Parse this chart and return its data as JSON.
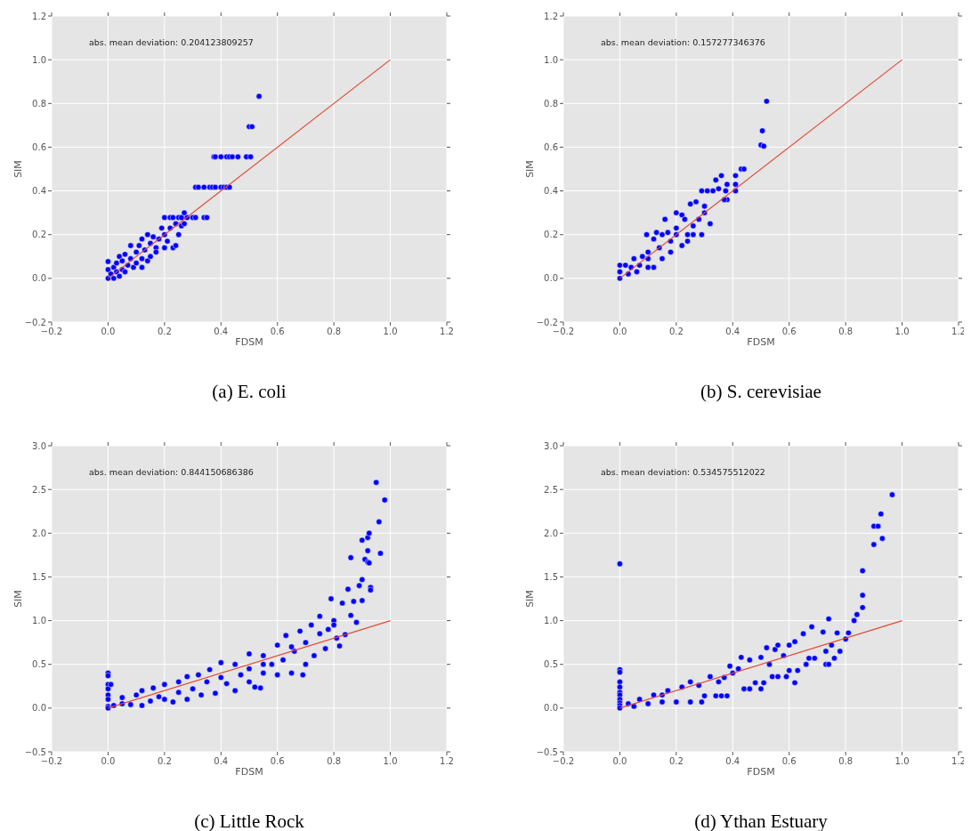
{
  "chart_data": [
    {
      "type": "scatter",
      "title": "(a) E. coli",
      "xlabel": "FDSM",
      "ylabel": "SIM",
      "annotations": [
        "abs. mean deviation: 0.204123809257"
      ],
      "grid": true,
      "xlim": [
        -0.2,
        1.2
      ],
      "ylim": [
        -0.2,
        1.2
      ],
      "xticks": [
        {
          "value": -0.2,
          "label": "−0.2"
        },
        {
          "value": 0,
          "label": "0.0"
        },
        0.2,
        0.4,
        0.6,
        0.8,
        {
          "value": 1,
          "label": "1.0"
        },
        1.2
      ],
      "yticks": [
        {
          "value": -0.2,
          "label": "−0.2"
        },
        {
          "value": 0,
          "label": "0.0"
        },
        0.2,
        0.4,
        0.6,
        0.8,
        {
          "value": 1,
          "label": "1.0"
        },
        1.2
      ],
      "series": [
        {
          "marker": "circle",
          "color": "#0000ff",
          "x": [
            0,
            0,
            0,
            0.01,
            0.02,
            0.02,
            0.03,
            0.03,
            0.04,
            0.04,
            0.05,
            0.05,
            0.06,
            0.06,
            0.07,
            0.08,
            0.08,
            0.09,
            0.1,
            0.1,
            0.11,
            0.12,
            0.12,
            0.12,
            0.13,
            0.14,
            0.14,
            0.15,
            0.15,
            0.16,
            0.17,
            0.17,
            0.18,
            0.19,
            0.2,
            0.2,
            0.21,
            0.22,
            0.23,
            0.24,
            0.24,
            0.25,
            0.26,
            0.27,
            0.27,
            0.2,
            0.22,
            0.23,
            0.25,
            0.26,
            0.28,
            0.3,
            0.31,
            0.34,
            0.35,
            0.31,
            0.32,
            0.34,
            0.36,
            0.37,
            0.38,
            0.4,
            0.41,
            0.42,
            0.43,
            0.375,
            0.38,
            0.4,
            0.42,
            0.43,
            0.44,
            0.46,
            0.49,
            0.505,
            0.5,
            0.51,
            0.535
          ],
          "values": [
            0,
            0.077,
            0.04,
            0.02,
            0.05,
            0,
            0.03,
            0.07,
            0.1,
            0.01,
            0.04,
            0.08,
            0.11,
            0.03,
            0.06,
            0.15,
            0.09,
            0.05,
            0.12,
            0.07,
            0.15,
            0.09,
            0.18,
            0.05,
            0.13,
            0.2,
            0.08,
            0.16,
            0.1,
            0.19,
            0.14,
            0.12,
            0.18,
            0.23,
            0.14,
            0.2,
            0.17,
            0.23,
            0.14,
            0.25,
            0.15,
            0.2,
            0.24,
            0.3,
            0.25,
            0.278,
            0.278,
            0.278,
            0.278,
            0.278,
            0.278,
            0.278,
            0.278,
            0.278,
            0.278,
            0.417,
            0.417,
            0.417,
            0.417,
            0.417,
            0.417,
            0.417,
            0.417,
            0.417,
            0.417,
            0.556,
            0.556,
            0.556,
            0.556,
            0.556,
            0.556,
            0.556,
            0.556,
            0.556,
            0.694,
            0.694,
            0.833
          ]
        },
        {
          "type": "line",
          "color": "#e24a33",
          "x": [
            0,
            1
          ],
          "values": [
            0,
            1
          ]
        }
      ]
    },
    {
      "type": "scatter",
      "title": "(b) S. cerevisiae",
      "xlabel": "FDSM",
      "ylabel": "SIM",
      "annotations": [
        "abs. mean deviation: 0.157277346376"
      ],
      "grid": true,
      "xlim": [
        -0.2,
        1.2
      ],
      "ylim": [
        -0.2,
        1.2
      ],
      "xticks": [
        {
          "value": -0.2,
          "label": "−0.2"
        },
        {
          "value": 0,
          "label": "0.0"
        },
        0.2,
        0.4,
        0.6,
        0.8,
        {
          "value": 1,
          "label": "1.0"
        },
        1.2
      ],
      "yticks": [
        {
          "value": -0.2,
          "label": "−0.2"
        },
        {
          "value": 0,
          "label": "0.0"
        },
        0.2,
        0.4,
        0.6,
        0.8,
        {
          "value": 1,
          "label": "1.0"
        },
        1.2
      ],
      "series": [
        {
          "marker": "circle",
          "color": "#0000ff",
          "x": [
            0.5,
            0.51,
            0.505,
            0.52,
            0.43,
            0.44,
            0.34,
            0.36,
            0.41,
            0.38,
            0.41,
            0.41,
            0.375,
            0.38,
            0.37,
            0.35,
            0.33,
            0.31,
            0.29,
            0.32,
            0.29,
            0.25,
            0.27,
            0.3,
            0.2,
            0.22,
            0.16,
            0.095,
            0.2,
            0.24,
            0.12,
            0.13,
            0.18,
            0.14,
            0.1,
            0.08,
            0.07,
            0.05,
            0.04,
            0.02,
            0,
            0,
            0,
            0.03,
            0.06,
            0.1,
            0.12,
            0.15,
            0.18,
            0.22,
            0.24,
            0.26,
            0.28,
            0.3,
            0.23,
            0.15,
            0.17,
            0.2,
            0.26,
            0.1
          ],
          "values": [
            0.61,
            0.605,
            0.675,
            0.81,
            0.5,
            0.5,
            0.45,
            0.47,
            0.47,
            0.43,
            0.43,
            0.4,
            0.4,
            0.36,
            0.36,
            0.41,
            0.4,
            0.4,
            0.4,
            0.25,
            0.2,
            0.34,
            0.35,
            0.33,
            0.3,
            0.29,
            0.27,
            0.2,
            0.2,
            0.2,
            0.18,
            0.21,
            0.17,
            0.14,
            0.12,
            0.1,
            0.06,
            0.09,
            0.05,
            0.06,
            0.06,
            0.03,
            0,
            0.02,
            0.03,
            0.05,
            0.05,
            0.09,
            0.12,
            0.15,
            0.17,
            0.24,
            0.27,
            0.3,
            0.27,
            0.2,
            0.21,
            0.23,
            0.2,
            0.09
          ]
        },
        {
          "type": "line",
          "color": "#e24a33",
          "x": [
            0,
            1
          ],
          "values": [
            0,
            1
          ]
        }
      ]
    },
    {
      "type": "scatter",
      "title": "(c) Little Rock",
      "xlabel": "FDSM",
      "ylabel": "SIM",
      "annotations": [
        "abs. mean deviation: 0.844150686386"
      ],
      "grid": true,
      "xlim": [
        -0.2,
        1.2
      ],
      "ylim": [
        -0.5,
        3.0
      ],
      "xticks": [
        {
          "value": -0.2,
          "label": "−0.2"
        },
        {
          "value": 0,
          "label": "0.0"
        },
        0.2,
        0.4,
        0.6,
        0.8,
        {
          "value": 1,
          "label": "1.0"
        },
        1.2
      ],
      "yticks": [
        {
          "value": -0.5,
          "label": "−0.5"
        },
        {
          "value": 0,
          "label": "0.0"
        },
        0.5,
        {
          "value": 1,
          "label": "1.0"
        },
        1.5,
        {
          "value": 2,
          "label": "2.0"
        },
        2.5,
        {
          "value": 3,
          "label": "3.0"
        }
      ],
      "series": [
        {
          "marker": "circle",
          "color": "#0000ff",
          "x": [
            0,
            0,
            0,
            0,
            0,
            0,
            0,
            0.01,
            0,
            0.02,
            0.05,
            0.05,
            0.08,
            0.1,
            0.12,
            0.12,
            0.15,
            0.16,
            0.18,
            0.2,
            0.2,
            0.23,
            0.25,
            0.25,
            0.28,
            0.28,
            0.3,
            0.32,
            0.33,
            0.35,
            0.36,
            0.38,
            0.4,
            0.4,
            0.42,
            0.45,
            0.45,
            0.47,
            0.5,
            0.5,
            0.5,
            0.52,
            0.54,
            0.55,
            0.55,
            0.58,
            0.6,
            0.6,
            0.62,
            0.63,
            0.65,
            0.66,
            0.68,
            0.69,
            0.7,
            0.7,
            0.72,
            0.73,
            0.75,
            0.75,
            0.77,
            0.78,
            0.79,
            0.8,
            0.81,
            0.82,
            0.83,
            0.84,
            0.85,
            0.86,
            0.86,
            0.87,
            0.88,
            0.89,
            0.9,
            0.9,
            0.9,
            0.91,
            0.92,
            0.92,
            0.92,
            0.925,
            0.925,
            0.93,
            0.93,
            0.95,
            0.96,
            0.965,
            0.98,
            0.8,
            0.65,
            0.55
          ],
          "values": [
            0.4,
            0.37,
            0.27,
            0.22,
            0.15,
            0.1,
            0.02,
            0.27,
            0,
            0.03,
            0.05,
            0.12,
            0.04,
            0.15,
            0.03,
            0.2,
            0.08,
            0.23,
            0.13,
            0.27,
            0.1,
            0.07,
            0.3,
            0.18,
            0.36,
            0.1,
            0.22,
            0.38,
            0.15,
            0.3,
            0.44,
            0.17,
            0.52,
            0.35,
            0.28,
            0.2,
            0.5,
            0.38,
            0.62,
            0.45,
            0.3,
            0.24,
            0.23,
            0.6,
            0.4,
            0.5,
            0.38,
            0.72,
            0.55,
            0.83,
            0.4,
            0.65,
            0.88,
            0.38,
            0.5,
            0.75,
            0.95,
            0.6,
            1.05,
            0.85,
            0.68,
            0.9,
            1.25,
            1.0,
            0.8,
            0.71,
            1.2,
            0.84,
            1.36,
            1.06,
            1.72,
            1.22,
            0.98,
            1.4,
            1.47,
            1.92,
            1.23,
            1.7,
            1.95,
            1.8,
            1.67,
            2.0,
            1.66,
            1.38,
            1.35,
            2.58,
            2.13,
            1.77,
            2.38,
            0.95,
            0.7,
            0.5
          ]
        },
        {
          "type": "line",
          "color": "#e24a33",
          "x": [
            0,
            1
          ],
          "values": [
            0,
            1
          ]
        }
      ]
    },
    {
      "type": "scatter",
      "title": "(d) Ythan Estuary",
      "xlabel": "FDSM",
      "ylabel": "SIM",
      "annotations": [
        "abs. mean deviation: 0.534575512022"
      ],
      "grid": true,
      "xlim": [
        -0.2,
        1.2
      ],
      "ylim": [
        -0.5,
        3.0
      ],
      "xticks": [
        {
          "value": -0.2,
          "label": "−0.2"
        },
        {
          "value": 0,
          "label": "0.0"
        },
        0.2,
        0.4,
        0.6,
        0.8,
        {
          "value": 1,
          "label": "1.0"
        },
        1.2
      ],
      "yticks": [
        {
          "value": -0.5,
          "label": "−0.5"
        },
        {
          "value": 0,
          "label": "0.0"
        },
        0.5,
        {
          "value": 1,
          "label": "1.0"
        },
        1.5,
        {
          "value": 2,
          "label": "2.0"
        },
        2.5,
        {
          "value": 3,
          "label": "3.0"
        }
      ],
      "series": [
        {
          "marker": "circle",
          "color": "#0000ff",
          "x": [
            0,
            0,
            0,
            0,
            0,
            0,
            0,
            0,
            0,
            0,
            0,
            0.03,
            0.05,
            0.07,
            0.1,
            0.12,
            0.15,
            0.17,
            0.2,
            0.22,
            0.25,
            0.25,
            0.29,
            0.3,
            0.32,
            0.34,
            0.36,
            0.38,
            0.37,
            0.39,
            0.42,
            0.43,
            0.44,
            0.46,
            0.46,
            0.48,
            0.5,
            0.5,
            0.51,
            0.52,
            0.53,
            0.54,
            0.55,
            0.56,
            0.56,
            0.58,
            0.59,
            0.6,
            0.6,
            0.62,
            0.62,
            0.63,
            0.65,
            0.66,
            0.67,
            0.68,
            0.69,
            0.72,
            0.73,
            0.73,
            0.74,
            0.74,
            0.75,
            0.76,
            0.77,
            0.78,
            0.8,
            0.81,
            0.83,
            0.84,
            0.86,
            0.86,
            0.86,
            0.9,
            0.9,
            0.915,
            0.925,
            0.93,
            0.965,
            0.15,
            0.28,
            0.35,
            0.4
          ],
          "values": [
            1.65,
            0.44,
            0.41,
            0.3,
            0.24,
            0.18,
            0.15,
            0.1,
            0.06,
            0.03,
            0,
            0.05,
            0.02,
            0.1,
            0.05,
            0.15,
            0.07,
            0.2,
            0.07,
            0.24,
            0.07,
            0.3,
            0.07,
            0.14,
            0.36,
            0.14,
            0.14,
            0.14,
            0.35,
            0.48,
            0.45,
            0.58,
            0.22,
            0.22,
            0.55,
            0.29,
            0.58,
            0.22,
            0.29,
            0.69,
            0.5,
            0.36,
            0.67,
            0.72,
            0.36,
            0.6,
            0.36,
            0.43,
            0.72,
            0.29,
            0.76,
            0.43,
            0.85,
            0.5,
            0.57,
            0.93,
            0.57,
            0.87,
            0.5,
            0.65,
            1.02,
            0.5,
            0.72,
            0.57,
            0.86,
            0.65,
            0.79,
            0.86,
            1.0,
            1.07,
            1.15,
            1.29,
            1.57,
            1.87,
            2.08,
            2.08,
            2.22,
            1.94,
            2.44,
            0.15,
            0.26,
            0.3,
            0.4
          ]
        },
        {
          "type": "line",
          "color": "#e24a33",
          "x": [
            0,
            1
          ],
          "values": [
            0,
            1
          ]
        }
      ]
    }
  ]
}
